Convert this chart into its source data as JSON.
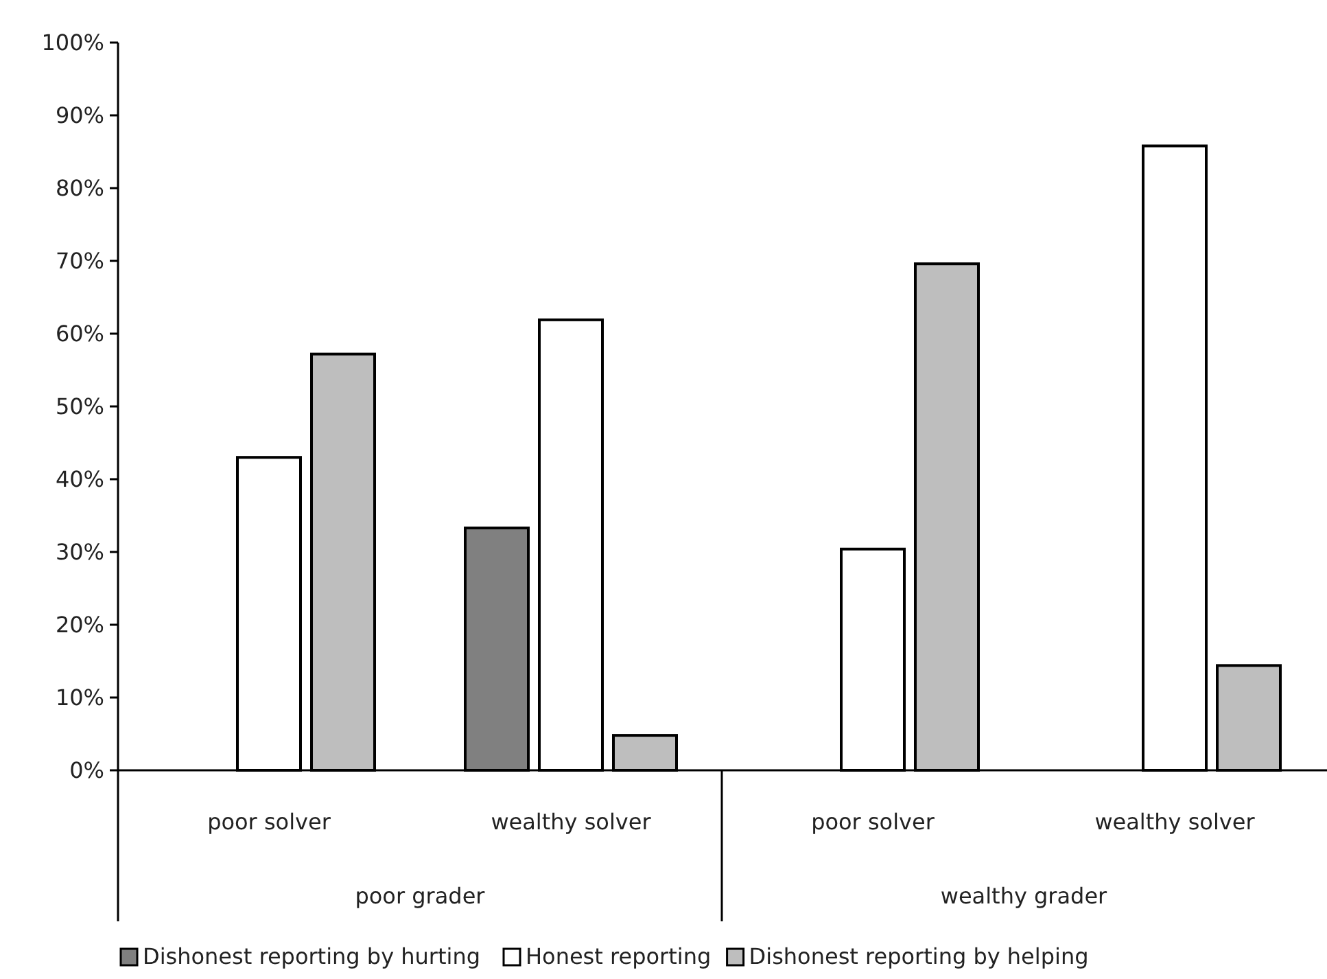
{
  "chart_data": {
    "type": "bar",
    "categories": [
      "poor solver",
      "wealthy solver",
      "poor solver",
      "wealthy solver"
    ],
    "annotations": [
      "poor grader",
      "wealthy grader"
    ],
    "series": [
      {
        "name": "Dishonest reporting by hurting",
        "color": "#808080",
        "values": [
          0,
          33.3,
          0,
          0
        ]
      },
      {
        "name": "Honest reporting",
        "color": "#ffffff",
        "values": [
          43,
          61.9,
          30.4,
          85.8
        ]
      },
      {
        "name": "Dishonest reporting by helping",
        "color": "#bebebe",
        "values": [
          57.2,
          4.8,
          69.6,
          14.4
        ]
      }
    ],
    "ylim": [
      0,
      100
    ],
    "yticks": [
      {
        "value": 0,
        "label": "0%"
      },
      {
        "value": 10,
        "label": "10%"
      },
      {
        "value": 20,
        "label": "20%"
      },
      {
        "value": 30,
        "label": "30%"
      },
      {
        "value": 40,
        "label": "40%"
      },
      {
        "value": 50,
        "label": "50%"
      },
      {
        "value": 60,
        "label": "60%"
      },
      {
        "value": 70,
        "label": "70%"
      },
      {
        "value": 80,
        "label": "80%"
      },
      {
        "value": 90,
        "label": "90%"
      },
      {
        "value": 100,
        "label": "100%"
      }
    ],
    "legend": "bottom",
    "grid": false
  }
}
